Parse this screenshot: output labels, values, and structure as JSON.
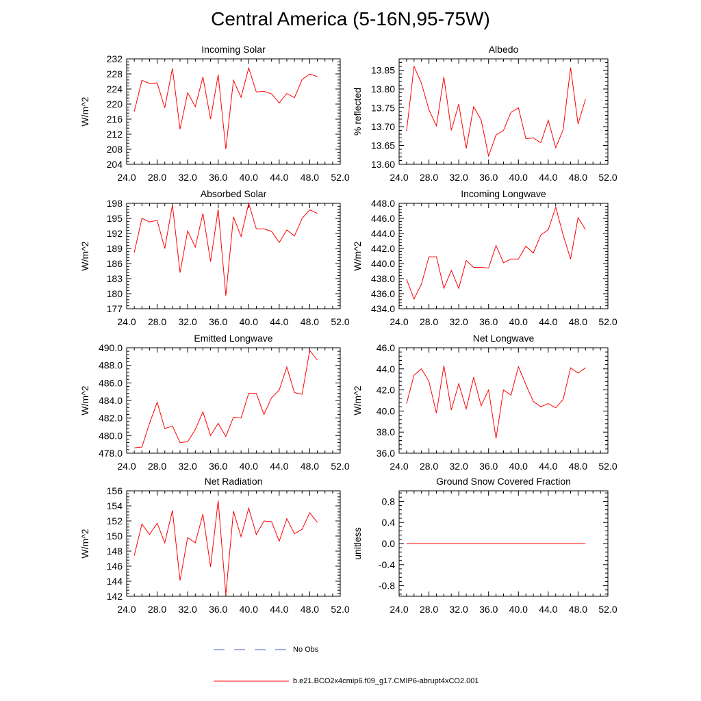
{
  "title": "Central America (5-16N,95-75W)",
  "line_color": "#ff0000",
  "obs_color": "#4a5fd0",
  "legend": {
    "obs_label": "No Obs",
    "model_label": "b.e21.BCO2x4cmip6.f09_g17.CMIP6-abrupt4xCO2.001"
  },
  "chart_data": [
    {
      "type": "line",
      "title": "Incoming Solar",
      "ylabel": "W/m^2",
      "xlim": [
        24,
        52
      ],
      "ylim": [
        204,
        232
      ],
      "xticks": [
        "24.0",
        "28.0",
        "32.0",
        "36.0",
        "40.0",
        "44.0",
        "48.0",
        "52.0"
      ],
      "yticks": [
        "204",
        "208",
        "212",
        "216",
        "220",
        "224",
        "228",
        "232"
      ],
      "x": [
        25,
        26,
        27,
        28,
        29,
        30,
        31,
        32,
        33,
        34,
        35,
        36,
        37,
        38,
        39,
        40,
        41,
        42,
        43,
        44,
        45,
        46,
        47,
        48,
        49
      ],
      "values": [
        218,
        226.3,
        225.5,
        225.6,
        219,
        229.5,
        213.3,
        223,
        219.3,
        227.2,
        216,
        227.8,
        208,
        226.3,
        221.8,
        229.6,
        223.2,
        223.4,
        222.7,
        220.3,
        222.8,
        221.7,
        226.5,
        228,
        227.3
      ]
    },
    {
      "type": "line",
      "title": "Albedo",
      "ylabel": "% reflected",
      "xlim": [
        24,
        52
      ],
      "ylim": [
        13.6,
        13.88
      ],
      "xticks": [
        "24.0",
        "28.0",
        "32.0",
        "36.0",
        "40.0",
        "44.0",
        "48.0",
        "52.0"
      ],
      "yticks": [
        "13.60",
        "13.65",
        "13.70",
        "13.75",
        "13.80",
        "13.85"
      ],
      "x": [
        25,
        26,
        27,
        28,
        29,
        30,
        31,
        32,
        33,
        34,
        35,
        36,
        37,
        38,
        39,
        40,
        41,
        42,
        43,
        44,
        45,
        46,
        47,
        48,
        49
      ],
      "values": [
        13.688,
        13.86,
        13.815,
        13.745,
        13.702,
        13.832,
        13.69,
        13.76,
        13.642,
        13.753,
        13.718,
        13.622,
        13.678,
        13.69,
        13.738,
        13.75,
        13.668,
        13.67,
        13.657,
        13.717,
        13.644,
        13.692,
        13.857,
        13.707,
        13.773
      ]
    },
    {
      "type": "line",
      "title": "Absorbed Solar",
      "ylabel": "W/m^2",
      "xlim": [
        24,
        52
      ],
      "ylim": [
        177,
        198
      ],
      "xticks": [
        "24.0",
        "28.0",
        "32.0",
        "36.0",
        "40.0",
        "44.0",
        "48.0",
        "52.0"
      ],
      "yticks": [
        "177",
        "180",
        "183",
        "186",
        "189",
        "192",
        "195",
        "198"
      ],
      "x": [
        25,
        26,
        27,
        28,
        29,
        30,
        31,
        32,
        33,
        34,
        35,
        36,
        37,
        38,
        39,
        40,
        41,
        42,
        43,
        44,
        45,
        46,
        47,
        48,
        49
      ],
      "values": [
        188.2,
        195,
        194.3,
        194.6,
        189,
        197.7,
        184.2,
        192.5,
        189.3,
        196,
        186.4,
        196.8,
        179.6,
        195.3,
        191.4,
        198,
        192.9,
        192.9,
        192.4,
        190.2,
        192.7,
        191.5,
        195,
        196.7,
        196
      ]
    },
    {
      "type": "line",
      "title": "Incoming Longwave",
      "ylabel": "W/m^2",
      "xlim": [
        24,
        52
      ],
      "ylim": [
        434,
        448
      ],
      "xticks": [
        "24.0",
        "28.0",
        "32.0",
        "36.0",
        "40.0",
        "44.0",
        "48.0",
        "52.0"
      ],
      "yticks": [
        "434.0",
        "436.0",
        "438.0",
        "440.0",
        "442.0",
        "444.0",
        "446.0",
        "448.0"
      ],
      "x": [
        25,
        26,
        27,
        28,
        29,
        30,
        31,
        32,
        33,
        34,
        35,
        36,
        37,
        38,
        39,
        40,
        41,
        42,
        43,
        44,
        45,
        46,
        47,
        48,
        49
      ],
      "values": [
        437.9,
        435.3,
        437.3,
        440.9,
        440.9,
        436.7,
        439.1,
        436.7,
        440.4,
        439.5,
        439.5,
        439.4,
        442.4,
        440.1,
        440.6,
        440.6,
        442.3,
        441.4,
        443.8,
        444.5,
        447.5,
        443.8,
        440.6,
        446.1,
        444.5
      ]
    },
    {
      "type": "line",
      "title": "Emitted Longwave",
      "ylabel": "W/m^2",
      "xlim": [
        24,
        52
      ],
      "ylim": [
        478,
        490
      ],
      "xticks": [
        "24.0",
        "28.0",
        "32.0",
        "36.0",
        "40.0",
        "44.0",
        "48.0",
        "52.0"
      ],
      "yticks": [
        "478.0",
        "480.0",
        "482.0",
        "484.0",
        "486.0",
        "488.0",
        "490.0"
      ],
      "x": [
        25,
        26,
        27,
        28,
        29,
        30,
        31,
        32,
        33,
        34,
        35,
        36,
        37,
        38,
        39,
        40,
        41,
        42,
        43,
        44,
        45,
        46,
        47,
        48,
        49
      ],
      "values": [
        478.6,
        478.7,
        481.4,
        483.8,
        480.8,
        481.1,
        479.2,
        479.3,
        480.7,
        482.7,
        480,
        481.4,
        479.9,
        482.1,
        482,
        484.8,
        484.8,
        482.4,
        484.3,
        485.2,
        487.8,
        484.9,
        484.7,
        489.7,
        488.6
      ]
    },
    {
      "type": "line",
      "title": "Net Longwave",
      "ylabel": "W/m^2",
      "xlim": [
        24,
        52
      ],
      "ylim": [
        36,
        46
      ],
      "xticks": [
        "24.0",
        "28.0",
        "32.0",
        "36.0",
        "40.0",
        "44.0",
        "48.0",
        "52.0"
      ],
      "yticks": [
        "36.0",
        "38.0",
        "40.0",
        "42.0",
        "44.0",
        "46.0"
      ],
      "x": [
        25,
        26,
        27,
        28,
        29,
        30,
        31,
        32,
        33,
        34,
        35,
        36,
        37,
        38,
        39,
        40,
        41,
        42,
        43,
        44,
        45,
        46,
        47,
        48,
        49
      ],
      "values": [
        40.7,
        43.4,
        44,
        42.8,
        39.8,
        44.3,
        40.1,
        42.6,
        40.2,
        43.2,
        40.5,
        42,
        37.4,
        42,
        41.5,
        44.2,
        42.5,
        40.9,
        40.4,
        40.7,
        40.3,
        41.1,
        44.1,
        43.6,
        44.1
      ]
    },
    {
      "type": "line",
      "title": "Net Radiation",
      "ylabel": "W/m^2",
      "xlim": [
        24,
        52
      ],
      "ylim": [
        142,
        156
      ],
      "xticks": [
        "24.0",
        "28.0",
        "32.0",
        "36.0",
        "40.0",
        "44.0",
        "48.0",
        "52.0"
      ],
      "yticks": [
        "142",
        "144",
        "146",
        "148",
        "150",
        "152",
        "154",
        "156"
      ],
      "x": [
        25,
        26,
        27,
        28,
        29,
        30,
        31,
        32,
        33,
        34,
        35,
        36,
        37,
        38,
        39,
        40,
        41,
        42,
        43,
        44,
        45,
        46,
        47,
        48,
        49
      ],
      "values": [
        147.4,
        151.6,
        150.2,
        151.7,
        149.1,
        153.4,
        144.1,
        149.8,
        149.1,
        152.9,
        145.9,
        154.7,
        142.2,
        153.3,
        149.9,
        153.7,
        150.2,
        152,
        151.9,
        149.3,
        152.3,
        150.3,
        150.9,
        153.1,
        151.8
      ]
    },
    {
      "type": "line",
      "title": "Ground Snow Covered Fraction",
      "ylabel": "unitless",
      "xlim": [
        24,
        52
      ],
      "ylim": [
        -1,
        1
      ],
      "xticks": [
        "24.0",
        "28.0",
        "32.0",
        "36.0",
        "40.0",
        "44.0",
        "48.0",
        "52.0"
      ],
      "yticks": [
        "-0.8",
        "-0.4",
        "0.0",
        "0.4",
        "0.8"
      ],
      "x": [
        25,
        26,
        27,
        28,
        29,
        30,
        31,
        32,
        33,
        34,
        35,
        36,
        37,
        38,
        39,
        40,
        41,
        42,
        43,
        44,
        45,
        46,
        47,
        48,
        49
      ],
      "values": [
        0,
        0,
        0,
        0,
        0,
        0,
        0,
        0,
        0,
        0,
        0,
        0,
        0,
        0,
        0,
        0,
        0,
        0,
        0,
        0,
        0,
        0,
        0,
        0,
        0
      ]
    }
  ]
}
